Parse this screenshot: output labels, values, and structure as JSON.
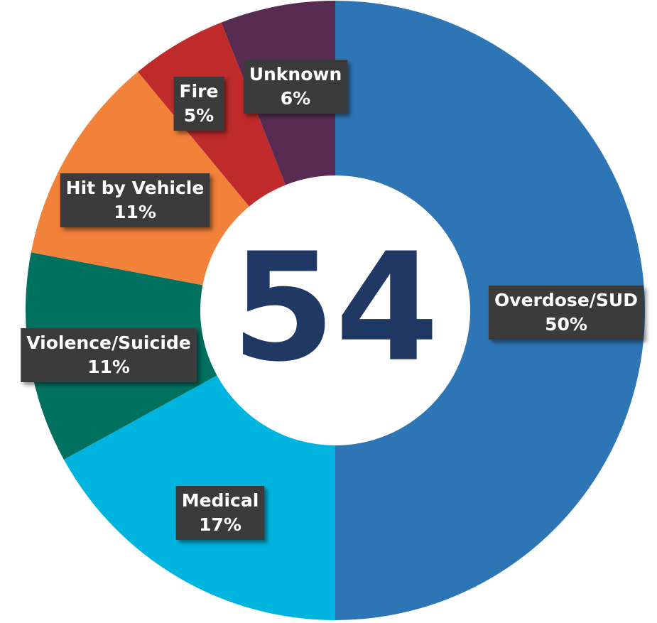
{
  "chart_data": {
    "type": "donut",
    "center_text": "54",
    "categories": [
      "Overdose/SUD",
      "Medical",
      "Violence/Suicide",
      "Hit by Vehicle",
      "Fire",
      "Unknown"
    ],
    "values": [
      50,
      17,
      11,
      11,
      5,
      6
    ],
    "value_labels": [
      "50%",
      "17%",
      "11%",
      "11%",
      "5%",
      "6%"
    ],
    "colors": [
      "#2e75b6",
      "#00b4e0",
      "#00705f",
      "#f2813a",
      "#bf2a2a",
      "#582b52"
    ]
  }
}
